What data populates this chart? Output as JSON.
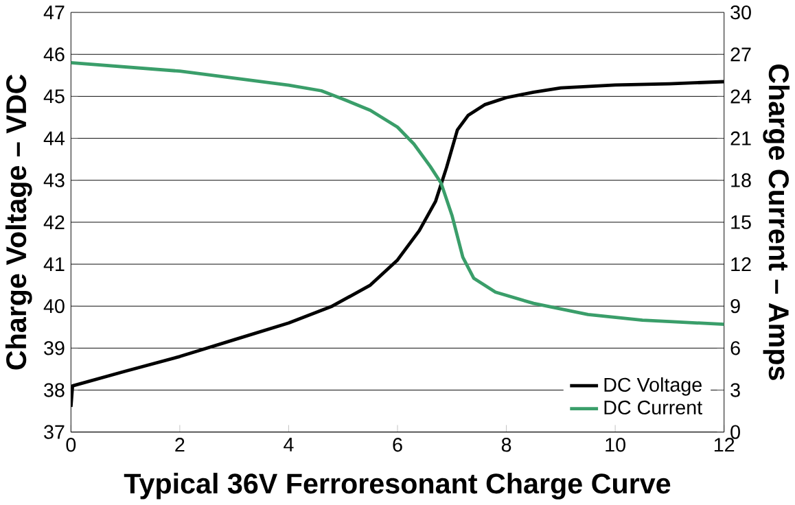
{
  "chart_data": {
    "type": "line",
    "xlabel": "Typical 36V Ferroresonant Charge Curve",
    "ylabel": "Charge Voltage – VDC",
    "y2label": "Charge Current – Amps",
    "xlim": [
      0,
      12
    ],
    "xticks": [
      0,
      2,
      4,
      6,
      8,
      10,
      12
    ],
    "ylim": [
      37,
      47
    ],
    "yticks": [
      37,
      38,
      39,
      40,
      41,
      42,
      43,
      44,
      45,
      46,
      47
    ],
    "y2lim": [
      0,
      30
    ],
    "y2ticks": [
      0,
      3,
      6,
      9,
      12,
      15,
      18,
      21,
      24,
      27,
      30
    ],
    "grid": "y",
    "legend": "bottom right",
    "series": [
      {
        "name": "DC Voltage",
        "color": "#000000",
        "x": [
          0,
          0.03,
          1,
          2,
          3,
          4,
          4.8,
          5.5,
          6,
          6.4,
          6.7,
          6.9,
          7.1,
          7.3,
          7.6,
          8,
          8.5,
          9,
          10,
          11,
          12
        ],
        "values": [
          37.6,
          38.1,
          38.45,
          38.8,
          39.2,
          39.6,
          40.0,
          40.5,
          41.1,
          41.8,
          42.5,
          43.3,
          44.2,
          44.55,
          44.8,
          44.97,
          45.1,
          45.2,
          45.27,
          45.3,
          45.35
        ]
      },
      {
        "name": "DC Current",
        "color": "#3a9e6a",
        "axis": "y2",
        "x": [
          0,
          2,
          4,
          4.6,
          5,
          5.5,
          6,
          6.3,
          6.6,
          6.8,
          7.0,
          7.2,
          7.4,
          7.8,
          8.5,
          9.5,
          10.5,
          11,
          12
        ],
        "values": [
          26.4,
          25.8,
          24.8,
          24.4,
          23.8,
          23.0,
          21.8,
          20.6,
          19.0,
          17.8,
          15.5,
          12.5,
          11.0,
          10.0,
          9.2,
          8.4,
          8.0,
          7.9,
          7.7
        ]
      }
    ]
  }
}
